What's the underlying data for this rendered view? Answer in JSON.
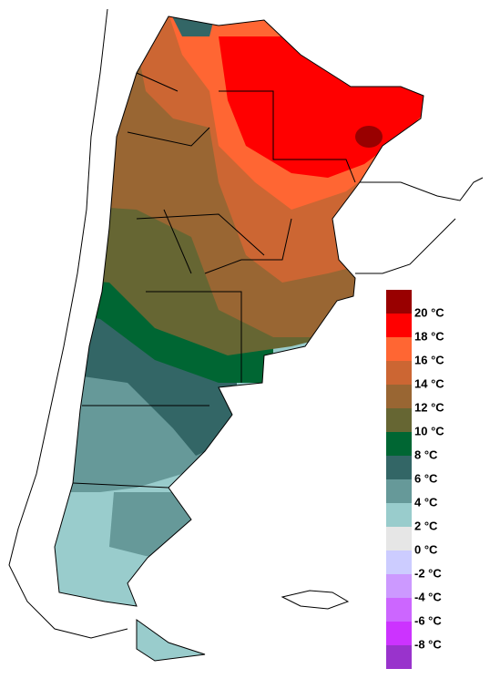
{
  "legend": {
    "labels": [
      "20 °C",
      "18 °C",
      "16 °C",
      "14 °C",
      "12 °C",
      "10 °C",
      "8 °C",
      "6 °C",
      "4 °C",
      "2 °C",
      "0 °C",
      "-2 °C",
      "-4 °C",
      "-6 °C",
      "-8 °C"
    ],
    "colors": [
      "#990000",
      "#ff0000",
      "#ff6633",
      "#cc6633",
      "#996633",
      "#666633",
      "#006633",
      "#336666",
      "#669999",
      "#99cccc",
      "#e6e6e6",
      "#ccccff",
      "#cc99ff",
      "#cc66ff",
      "#cc33ff",
      "#9933cc"
    ]
  }
}
